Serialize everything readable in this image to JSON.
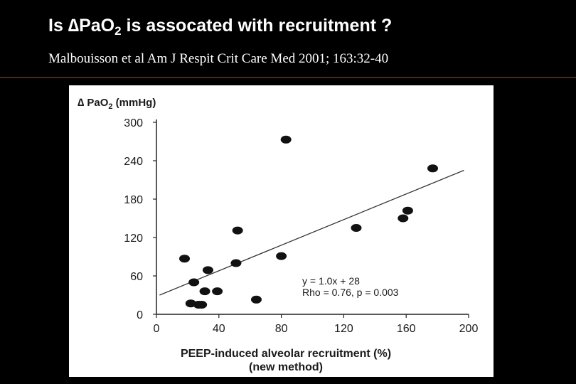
{
  "slide": {
    "title_prefix": "Is ∆PaO",
    "title_sub": "2",
    "title_suffix": " is assocated with recruitment ?",
    "citation": "Malbouisson et al Am J Respit Crit Care Med 2001; 163:32-40"
  },
  "chart_data": {
    "type": "scatter",
    "ylabel_prefix": "∆ PaO",
    "ylabel_sub": "2",
    "ylabel_suffix": " (mmHg)",
    "xlabel_line1": "PEEP-induced alveolar recruitment (%)",
    "xlabel_line2": "(new method)",
    "xlim": [
      0,
      200
    ],
    "ylim": [
      0,
      300
    ],
    "x_ticks": [
      0,
      40,
      80,
      120,
      160,
      200
    ],
    "y_ticks": [
      0,
      60,
      120,
      180,
      240,
      300
    ],
    "points": [
      {
        "x": 18,
        "y": 87
      },
      {
        "x": 22,
        "y": 17
      },
      {
        "x": 24,
        "y": 50
      },
      {
        "x": 27,
        "y": 15
      },
      {
        "x": 29,
        "y": 15
      },
      {
        "x": 31,
        "y": 36
      },
      {
        "x": 33,
        "y": 69
      },
      {
        "x": 39,
        "y": 36
      },
      {
        "x": 51,
        "y": 80
      },
      {
        "x": 52,
        "y": 131
      },
      {
        "x": 64,
        "y": 23
      },
      {
        "x": 80,
        "y": 91
      },
      {
        "x": 83,
        "y": 273
      },
      {
        "x": 128,
        "y": 135
      },
      {
        "x": 158,
        "y": 150
      },
      {
        "x": 161,
        "y": 162
      },
      {
        "x": 177,
        "y": 228
      }
    ],
    "regression": {
      "slope": 1.0,
      "intercept": 28,
      "x_range": [
        2,
        197
      ]
    },
    "annotation_line1": "y = 1.0x + 28",
    "annotation_line2": "Rho = 0.76, p = 0.003",
    "grid": false,
    "marker_color": "#111111",
    "background_color": "#ffffff"
  }
}
